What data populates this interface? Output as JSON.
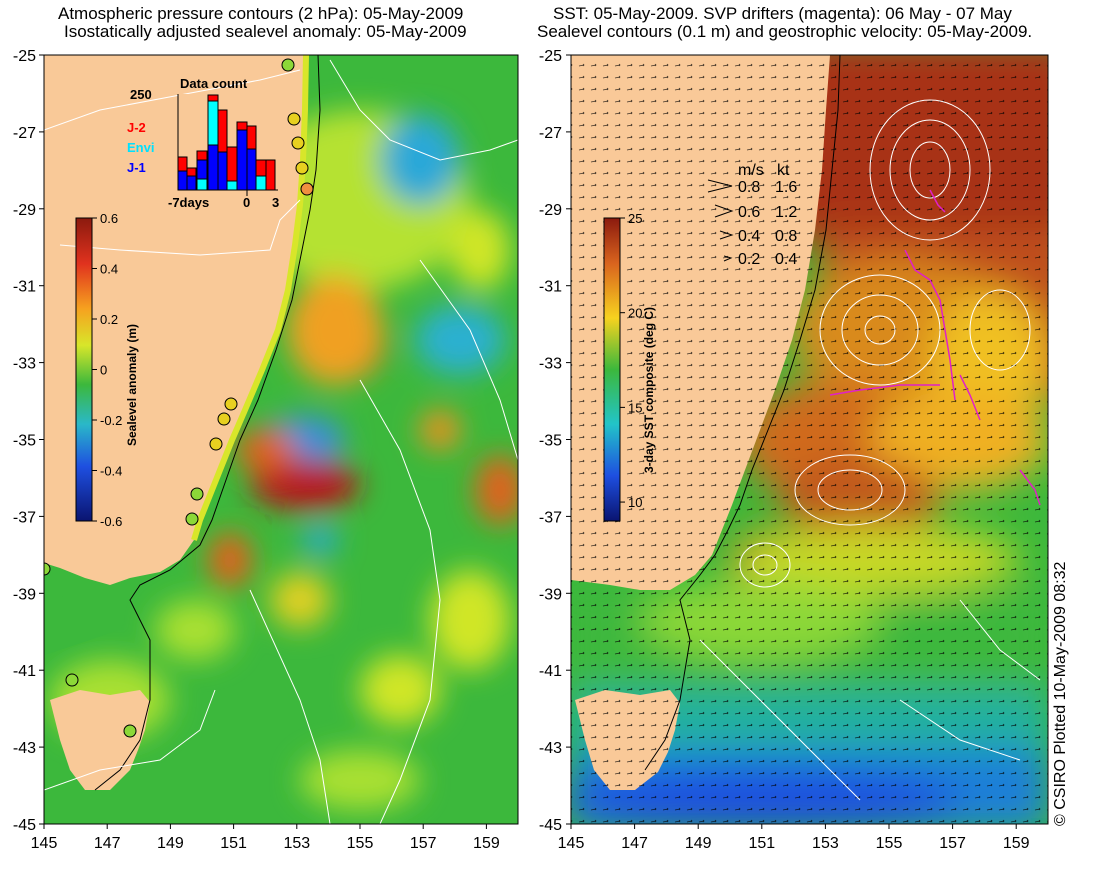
{
  "left_panel": {
    "title_line1": "Atmospheric pressure contours (2 hPa): 05-May-2009",
    "title_line2": "Isostatically adjusted sealevel anomaly: 05-May-2009",
    "x_ticks": [
      "145",
      "147",
      "149",
      "151",
      "153",
      "155",
      "157",
      "159"
    ],
    "y_ticks": [
      "-25",
      "-27",
      "-29",
      "-31",
      "-33",
      "-35",
      "-37",
      "-39",
      "-41",
      "-43",
      "-45"
    ],
    "colorbar": {
      "label": "Sealevel anomaly (m)",
      "ticks": [
        "0.6",
        "0.4",
        "0.2",
        "0",
        "-0.2",
        "-0.4",
        "-0.6"
      ]
    },
    "inset": {
      "title": "Data count",
      "y_max_label": "250",
      "x_labels": [
        "-7days",
        "0",
        "3"
      ],
      "legend": [
        {
          "label": "J-2",
          "color": "#ff0000"
        },
        {
          "label": "Envi",
          "color": "#00ffff"
        },
        {
          "label": "J-1",
          "color": "#0000ff"
        }
      ]
    }
  },
  "right_panel": {
    "title_line1": "SST: 05-May-2009. SVP drifters (magenta): 06 May - 07 May",
    "title_line2": "Sealevel contours (0.1 m) and geostrophic velocity: 05-May-2009.",
    "x_ticks": [
      "145",
      "147",
      "149",
      "151",
      "153",
      "155",
      "157",
      "159"
    ],
    "y_ticks": [
      "-25",
      "-27",
      "-29",
      "-31",
      "-33",
      "-35",
      "-37",
      "-39",
      "-41",
      "-43",
      "-45"
    ],
    "colorbar": {
      "label": "3-day SST composite (deg C)",
      "ticks": [
        "25",
        "20",
        "15",
        "10"
      ]
    },
    "velocity_legend": {
      "header_ms": "m/s",
      "header_kt": "kt",
      "rows": [
        {
          "ms": "0.8",
          "kt": "1.6"
        },
        {
          "ms": "0.6",
          "kt": "1.2"
        },
        {
          "ms": "0.4",
          "kt": "0.8"
        },
        {
          "ms": "0.2",
          "kt": "0.4"
        }
      ]
    }
  },
  "credit": "© CSIRO Plotted 10-May-2009 08:32",
  "colors": {
    "land": "#f9c998",
    "ocean_base": "#3cb83c",
    "warm_sst": "#b8421a",
    "cool_sst": "#1f6fd8"
  }
}
